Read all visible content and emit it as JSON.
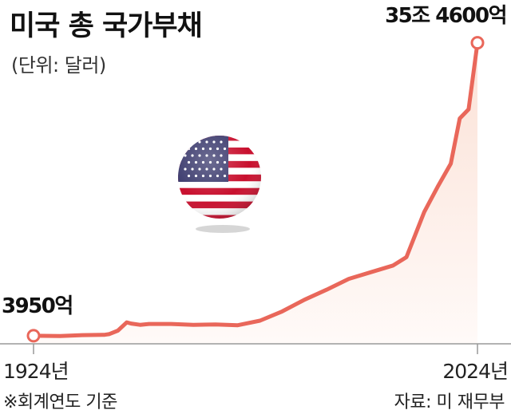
{
  "chart_data": {
    "type": "area",
    "title": "미국 총 국가부채",
    "subtitle": "(단위: 달러)",
    "note": "※회계연도 기준",
    "source": "자료: 미 재무부",
    "x_tick_labels": [
      "1924년",
      "2024년"
    ],
    "start_label": "3950억",
    "end_label": "35조 4600억",
    "x": [
      1924,
      1926,
      1930,
      1935,
      1940,
      1941,
      1943,
      1945,
      1946,
      1948,
      1950,
      1955,
      1960,
      1965,
      1970,
      1975,
      1980,
      1985,
      1990,
      1995,
      2000,
      2005,
      2008,
      2010,
      2012,
      2015,
      2018,
      2020,
      2022,
      2024
    ],
    "y": [
      0.395,
      0.38,
      0.35,
      0.47,
      0.51,
      0.58,
      1.0,
      2.0,
      1.85,
      1.7,
      1.8,
      1.8,
      1.7,
      1.75,
      1.65,
      2.2,
      3.3,
      4.7,
      5.9,
      7.2,
      8.0,
      8.8,
      9.8,
      12.5,
      15.2,
      18.2,
      21.0,
      26.4,
      27.5,
      35.46
    ],
    "y_unit": "조 달러",
    "ylim": [
      0,
      36
    ],
    "grid": false,
    "legend": "none",
    "line_color": "#e9675a",
    "fill_color_top": "#fbe1d6",
    "fill_color_bottom": "#fffaf8"
  },
  "flag": {
    "icon": "us-flag-icon"
  }
}
